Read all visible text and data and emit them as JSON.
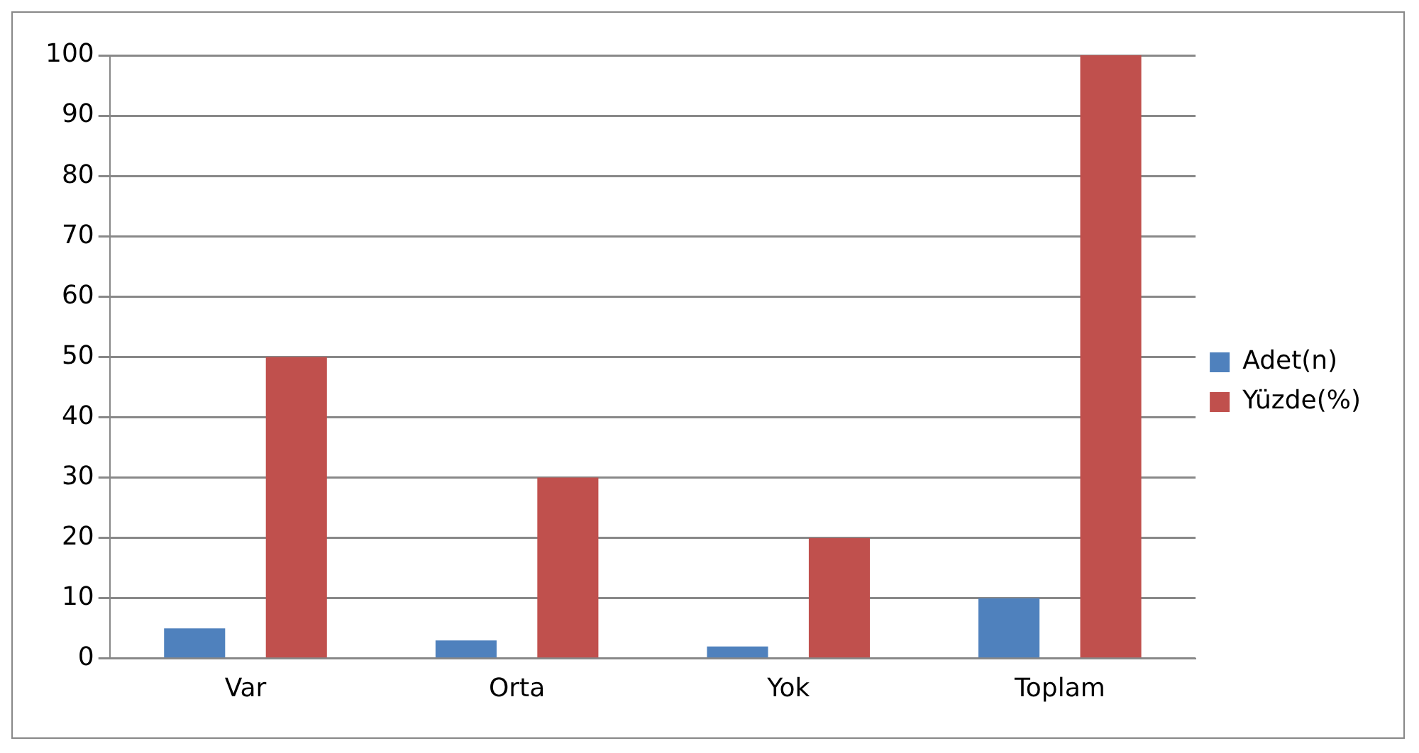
{
  "chart_data": {
    "type": "bar",
    "categories": [
      "Var",
      "Orta",
      "Yok",
      "Toplam"
    ],
    "series": [
      {
        "name": "Adet(n)",
        "color": "#4f81bd",
        "values": [
          5,
          3,
          2,
          10
        ]
      },
      {
        "name": "Yüzde(%)",
        "color": "#c0504d",
        "values": [
          50,
          30,
          20,
          100
        ]
      }
    ],
    "ylim": [
      0,
      100
    ],
    "yticks": [
      0,
      10,
      20,
      30,
      40,
      50,
      60,
      70,
      80,
      90,
      100
    ],
    "grid": "y",
    "legend": "right"
  }
}
